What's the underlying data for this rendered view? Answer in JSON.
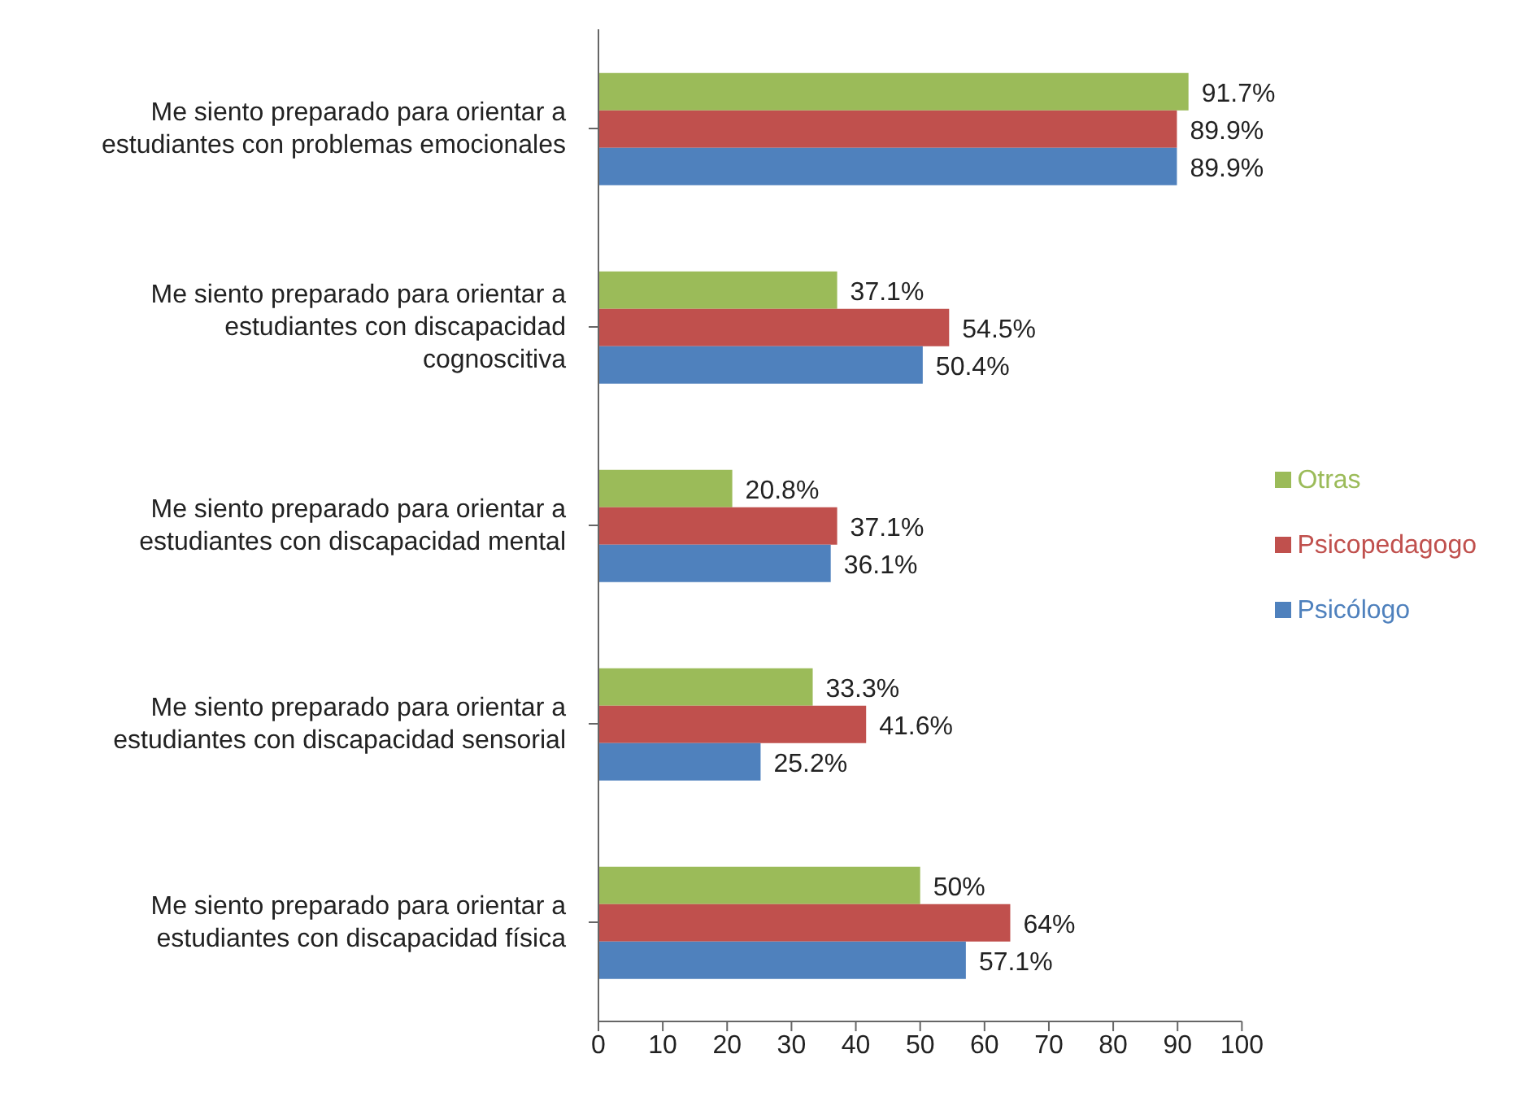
{
  "chart_data": {
    "type": "bar",
    "orientation": "horizontal",
    "categories": [
      "Me siento preparado para orientar a estudiantes con problemas emocionales",
      "Me siento preparado para orientar a estudiantes con discapacidad cognoscitiva",
      "Me siento preparado para orientar a estudiantes con discapacidad mental",
      "Me siento preparado para orientar a estudiantes con discapacidad sensorial",
      "Me siento preparado para orientar a estudiantes con discapacidad física"
    ],
    "series": [
      {
        "name": "Otras",
        "color": "#9bbb59",
        "values": [
          91.7,
          37.1,
          20.8,
          33.3,
          50
        ],
        "value_labels": [
          "91.7%",
          "37.1%",
          "20.8%",
          "33.3%",
          "50%"
        ]
      },
      {
        "name": "Psicopedagogo",
        "color": "#c0504d",
        "values": [
          89.9,
          54.5,
          37.1,
          41.6,
          64
        ],
        "value_labels": [
          "89.9%",
          "54.5%",
          "37.1%",
          "41.6%",
          "64%"
        ]
      },
      {
        "name": "Psicólogo",
        "color": "#4f81bd",
        "values": [
          89.9,
          50.4,
          36.1,
          25.2,
          57.1
        ],
        "value_labels": [
          "89.9%",
          "50.4%",
          "36.1%",
          "25.2%",
          "57.1%"
        ]
      }
    ],
    "xlim": [
      0,
      100
    ],
    "xticks": [
      0,
      10,
      20,
      30,
      40,
      50,
      60,
      70,
      80,
      90,
      100
    ],
    "grid": false,
    "legend": "right"
  }
}
